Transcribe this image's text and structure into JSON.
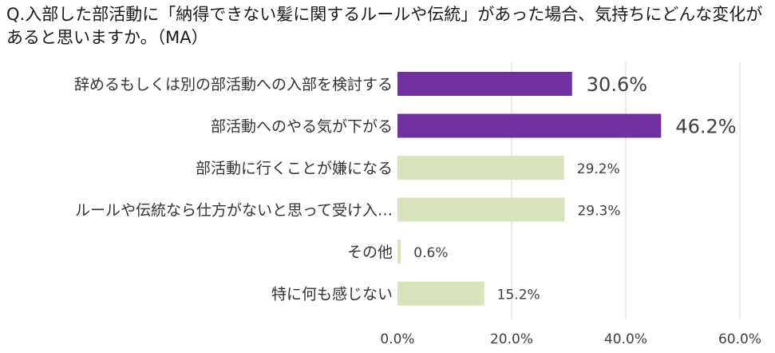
{
  "chart_data": {
    "type": "bar",
    "orientation": "horizontal",
    "title": "Q.入部した部活動に「納得できない髪に関するルールや伝統」があった場合、気持ちにどんな変化があると思いますか。（MA）",
    "categories": [
      "辞めるもしくは別の部活動への入部を検討する",
      "部活動へのやる気が下がる",
      "部活動に行くことが嫌になる",
      "ルールや伝統なら仕方がないと思って受け入…",
      "その他",
      "特に何も感じない"
    ],
    "values": [
      30.6,
      46.2,
      29.2,
      29.3,
      0.6,
      15.2
    ],
    "value_labels": [
      "30.6%",
      "46.2%",
      "29.2%",
      "29.3%",
      "0.6%",
      "15.2%"
    ],
    "highlighted": [
      true,
      true,
      false,
      false,
      false,
      false
    ],
    "xlim": [
      0,
      60
    ],
    "x_ticks": [
      "0.0%",
      "20.0%",
      "40.0%",
      "60.0%"
    ],
    "grid": true,
    "colors": {
      "highlight": "#7030A0",
      "normal": "#D8E4BC",
      "grid": "#D9D9D9",
      "text": "#404040"
    }
  }
}
